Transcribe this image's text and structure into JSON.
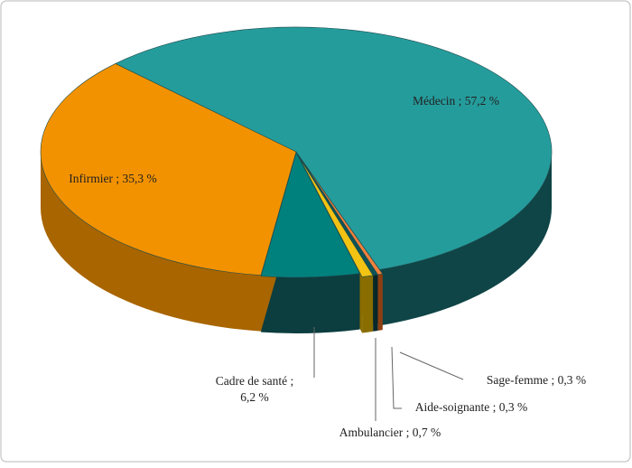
{
  "chart_data": {
    "type": "pie",
    "value_labels": [
      "Médecin ; 57,2 %",
      "Sage-femme ; 0,3 %",
      "Aide-soignante ; 0,3 %",
      "Ambulancier ; 0,7 %",
      "Cadre de santé ;\n6,2 %",
      "Infirmier ; 35,3 %"
    ],
    "values": [
      57.2,
      0.3,
      0.3,
      0.7,
      6.2,
      35.3
    ],
    "colors": [
      "#259c9c",
      "#f0803c",
      "#0d5458",
      "#f2c313",
      "#00817e",
      "#f39200"
    ],
    "side_colors": [
      "#0f4547",
      "#8e3f12",
      "#06282b",
      "#8a6d00",
      "#0c3d3f",
      "#a86500"
    ]
  }
}
